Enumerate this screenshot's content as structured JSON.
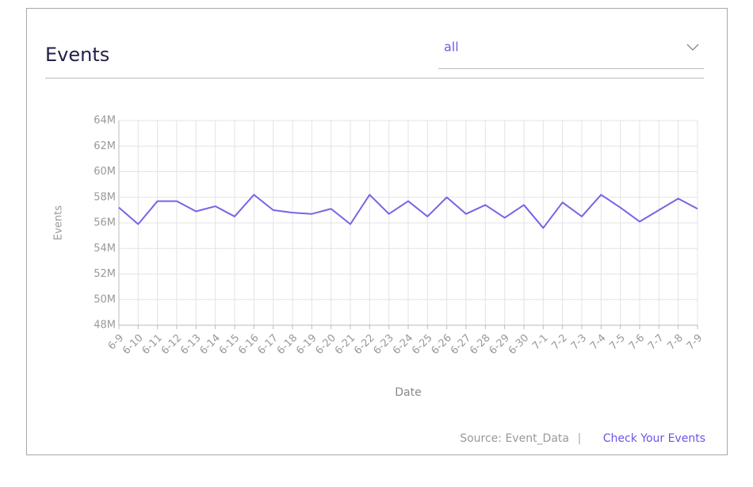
{
  "header": {
    "title": "Events",
    "filter": "all"
  },
  "chart_data": {
    "type": "line",
    "xlabel": "Date",
    "ylabel": "Events",
    "categories": [
      "6-9",
      "6-10",
      "6-11",
      "6-12",
      "6-13",
      "6-14",
      "6-15",
      "6-16",
      "6-17",
      "6-18",
      "6-19",
      "6-20",
      "6-21",
      "6-22",
      "6-23",
      "6-24",
      "6-25",
      "6-26",
      "6-27",
      "6-28",
      "6-29",
      "6-30",
      "7-1",
      "7-2",
      "7-3",
      "7-4",
      "7-5",
      "7-6",
      "7-7",
      "7-8",
      "7-9"
    ],
    "series": [
      {
        "name": "Events",
        "color": "#7565e6",
        "values": [
          57200000,
          55900000,
          57700000,
          57700000,
          56900000,
          57300000,
          56500000,
          58200000,
          57000000,
          56800000,
          56700000,
          57100000,
          55900000,
          58200000,
          56700000,
          57700000,
          56500000,
          58000000,
          56700000,
          57400000,
          56400000,
          57400000,
          55600000,
          57600000,
          56500000,
          58200000,
          57200000,
          56100000,
          57000000,
          57900000,
          57100000
        ]
      }
    ],
    "ylim": [
      48000000,
      64000000
    ],
    "yticks": [
      {
        "value": 48000000,
        "label": "48M"
      },
      {
        "value": 50000000,
        "label": "50M"
      },
      {
        "value": 52000000,
        "label": "52M"
      },
      {
        "value": 54000000,
        "label": "54M"
      },
      {
        "value": 56000000,
        "label": "56M"
      },
      {
        "value": 58000000,
        "label": "58M"
      },
      {
        "value": 60000000,
        "label": "60M"
      },
      {
        "value": 62000000,
        "label": "62M"
      },
      {
        "value": 64000000,
        "label": "64M"
      }
    ],
    "grid": true
  },
  "footer": {
    "source": "Source: Event_Data",
    "separator": "|",
    "link": "Check Your Events"
  }
}
